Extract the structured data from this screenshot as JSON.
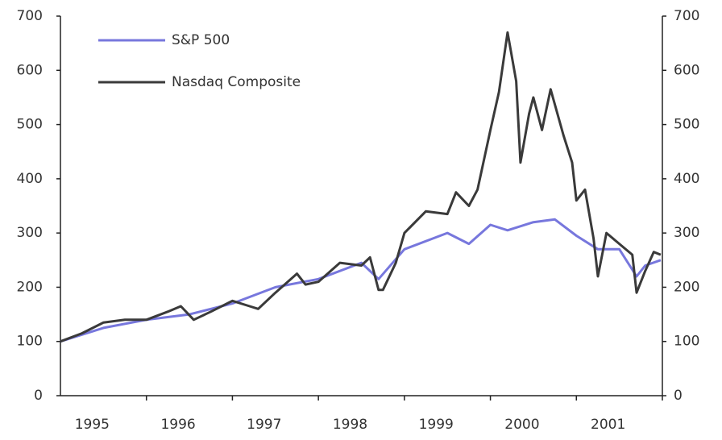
{
  "chart_data": {
    "type": "line",
    "series": [
      {
        "name": "S&P 500",
        "color": "#7777dd",
        "x": [
          1995.0,
          1995.5,
          1996.0,
          1996.5,
          1997.0,
          1997.5,
          1998.0,
          1998.5,
          1998.7,
          1999.0,
          1999.5,
          1999.75,
          2000.0,
          2000.2,
          2000.5,
          2000.75,
          2001.0,
          2001.25,
          2001.5,
          2001.7,
          2001.8,
          2001.98
        ],
        "values": [
          100,
          125,
          140,
          150,
          170,
          200,
          215,
          245,
          215,
          270,
          300,
          280,
          315,
          305,
          320,
          325,
          295,
          270,
          270,
          220,
          240,
          250
        ]
      },
      {
        "name": "Nasdaq Composite",
        "color": "#3a3a3a",
        "x": [
          1995.0,
          1995.25,
          1995.5,
          1995.75,
          1996.0,
          1996.25,
          1996.4,
          1996.55,
          1996.75,
          1997.0,
          1997.2,
          1997.3,
          1997.5,
          1997.75,
          1997.85,
          1998.0,
          1998.25,
          1998.5,
          1998.6,
          1998.7,
          1998.75,
          1998.9,
          1999.0,
          1999.25,
          1999.5,
          1999.6,
          1999.75,
          1999.85,
          2000.0,
          2000.1,
          2000.2,
          2000.3,
          2000.35,
          2000.45,
          2000.5,
          2000.6,
          2000.7,
          2000.85,
          2000.95,
          2001.0,
          2001.1,
          2001.2,
          2001.25,
          2001.35,
          2001.5,
          2001.65,
          2001.7,
          2001.8,
          2001.9,
          2001.98
        ],
        "values": [
          100,
          115,
          135,
          140,
          140,
          155,
          165,
          140,
          155,
          175,
          165,
          160,
          190,
          225,
          205,
          210,
          245,
          240,
          255,
          195,
          195,
          245,
          300,
          340,
          335,
          375,
          350,
          380,
          490,
          560,
          670,
          580,
          430,
          520,
          550,
          490,
          565,
          480,
          430,
          360,
          380,
          290,
          220,
          300,
          280,
          260,
          190,
          230,
          265,
          260
        ]
      }
    ],
    "xlim": [
      1995,
      2002
    ],
    "xticks": [
      {
        "value": 1995.5,
        "label": "1995"
      },
      {
        "value": 1996.5,
        "label": "1996"
      },
      {
        "value": 1997.5,
        "label": "1997"
      },
      {
        "value": 1998.5,
        "label": "1998"
      },
      {
        "value": 1999.5,
        "label": "1999"
      },
      {
        "value": 2000.5,
        "label": "2000"
      },
      {
        "value": 2001.5,
        "label": "2001"
      }
    ],
    "ylim": [
      0,
      700
    ],
    "yticks": [
      0,
      100,
      200,
      300,
      400,
      500,
      600,
      700
    ],
    "y2lim": [
      0,
      700
    ],
    "y2ticks": [
      0,
      100,
      200,
      300,
      400,
      500,
      600,
      700
    ],
    "legend": "upper left"
  }
}
